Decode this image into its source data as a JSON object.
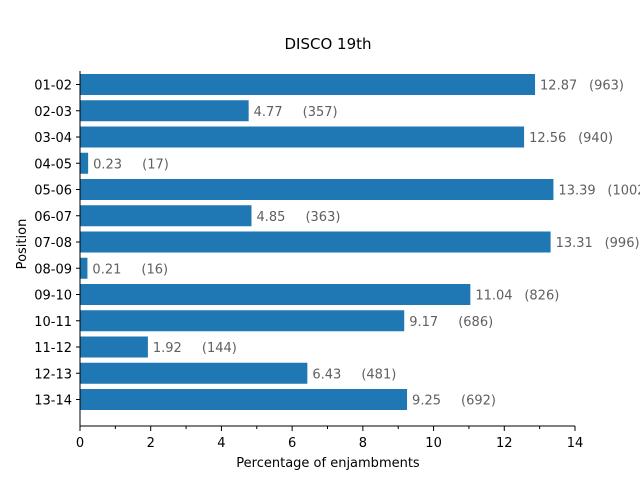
{
  "chart_data": {
    "type": "bar",
    "orientation": "horizontal",
    "title": "DISCO 19th",
    "xlabel": "Percentage of enjambments",
    "ylabel": "Position",
    "xlim": [
      0,
      14
    ],
    "xticks": [
      "0",
      "2",
      "4",
      "6",
      "8",
      "10",
      "12",
      "14"
    ],
    "bar_color": "#1f77b4",
    "value_label_color": "#606060",
    "grid": false,
    "categories": [
      "01-02",
      "02-03",
      "03-04",
      "04-05",
      "05-06",
      "06-07",
      "07-08",
      "08-09",
      "09-10",
      "10-11",
      "11-12",
      "12-13",
      "13-14"
    ],
    "values": [
      12.87,
      4.77,
      12.56,
      0.23,
      13.39,
      4.85,
      13.31,
      0.21,
      11.04,
      9.17,
      1.92,
      6.43,
      9.25
    ],
    "value_labels": [
      "12.87",
      "4.77",
      "12.56",
      "0.23",
      "13.39",
      "4.85",
      "13.31",
      "0.21",
      "11.04",
      "9.17",
      "1.92",
      "6.43",
      "9.25"
    ],
    "count_labels": [
      "(963)",
      "(357)",
      "(940)",
      "(17)",
      "(1002",
      "(363)",
      "(996)",
      "(16)",
      "(826)",
      "(686)",
      "(144)",
      "(481)",
      "(692)"
    ]
  }
}
